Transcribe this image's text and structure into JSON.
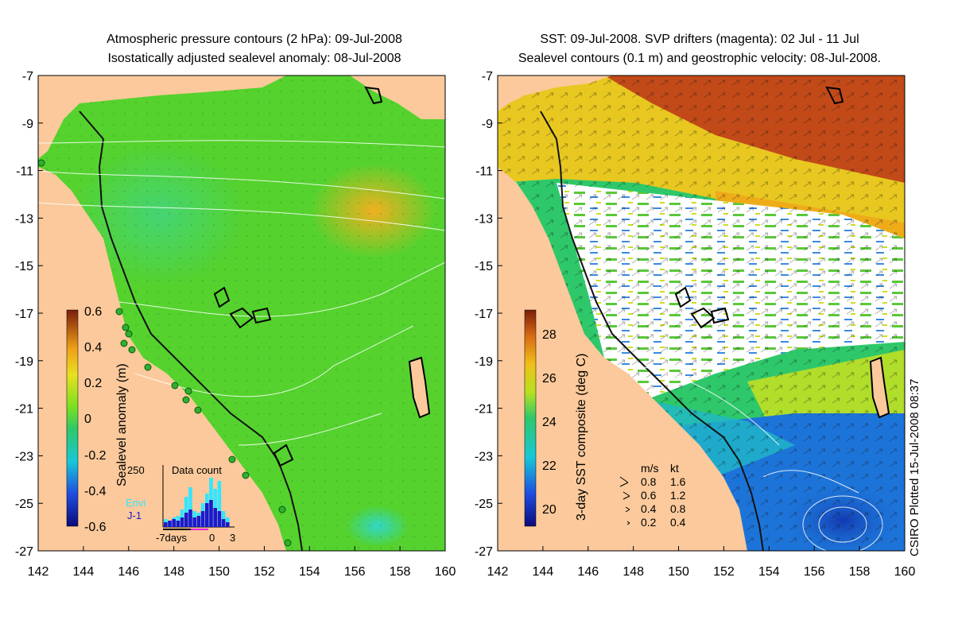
{
  "left_panel": {
    "title_line1": "Atmospheric pressure contours (2 hPa): 09-Jul-2008",
    "title_line2": "Isostatically adjusted sealevel anomaly: 08-Jul-2008",
    "colorbar_label": "Sealevel anomaly (m)",
    "colorbar_ticks": [
      "0.6",
      "0.4",
      "0.2",
      "0",
      "-0.2",
      "-0.4",
      "-0.6"
    ],
    "inset": {
      "title": "Data count",
      "y_max_label": "250",
      "series_envi": "Envi",
      "series_j1": "J-1",
      "x_label_start": "-7days",
      "x_label_zero": "0",
      "x_label_end": "3",
      "colors": {
        "envi": "#33e6ff",
        "j1": "#1a1acc"
      }
    }
  },
  "right_panel": {
    "title_line1": "SST: 09-Jul-2008. SVP drifters (magenta): 02 Jul - 11 Jul",
    "title_line2": "Sealevel contours (0.1 m) and geostrophic velocity: 08-Jul-2008.",
    "colorbar_label": "3-day SST composite (deg C)",
    "colorbar_ticks": [
      "28",
      "26",
      "24",
      "22",
      "20"
    ],
    "velocity_legend": {
      "header_ms": "m/s",
      "header_kt": "kt",
      "rows": [
        {
          "ms": "0.8",
          "kt": "1.6"
        },
        {
          "ms": "0.6",
          "kt": "1.2"
        },
        {
          "ms": "0.4",
          "kt": "0.8"
        },
        {
          "ms": "0.2",
          "kt": "0.4"
        }
      ]
    }
  },
  "axes": {
    "x_ticks": [
      "142",
      "144",
      "146",
      "148",
      "150",
      "152",
      "154",
      "156",
      "158",
      "160"
    ],
    "y_ticks": [
      "-7",
      "-9",
      "-11",
      "-13",
      "-15",
      "-17",
      "-19",
      "-21",
      "-23",
      "-25",
      "-27"
    ]
  },
  "credit": "CSIRO Plotted 15-Jul-2008 08:37",
  "colors": {
    "land": "#fbc99b",
    "ocean_green": "#55d22e",
    "sst_red": "#b53a14",
    "sst_blue": "#1d74d8"
  }
}
